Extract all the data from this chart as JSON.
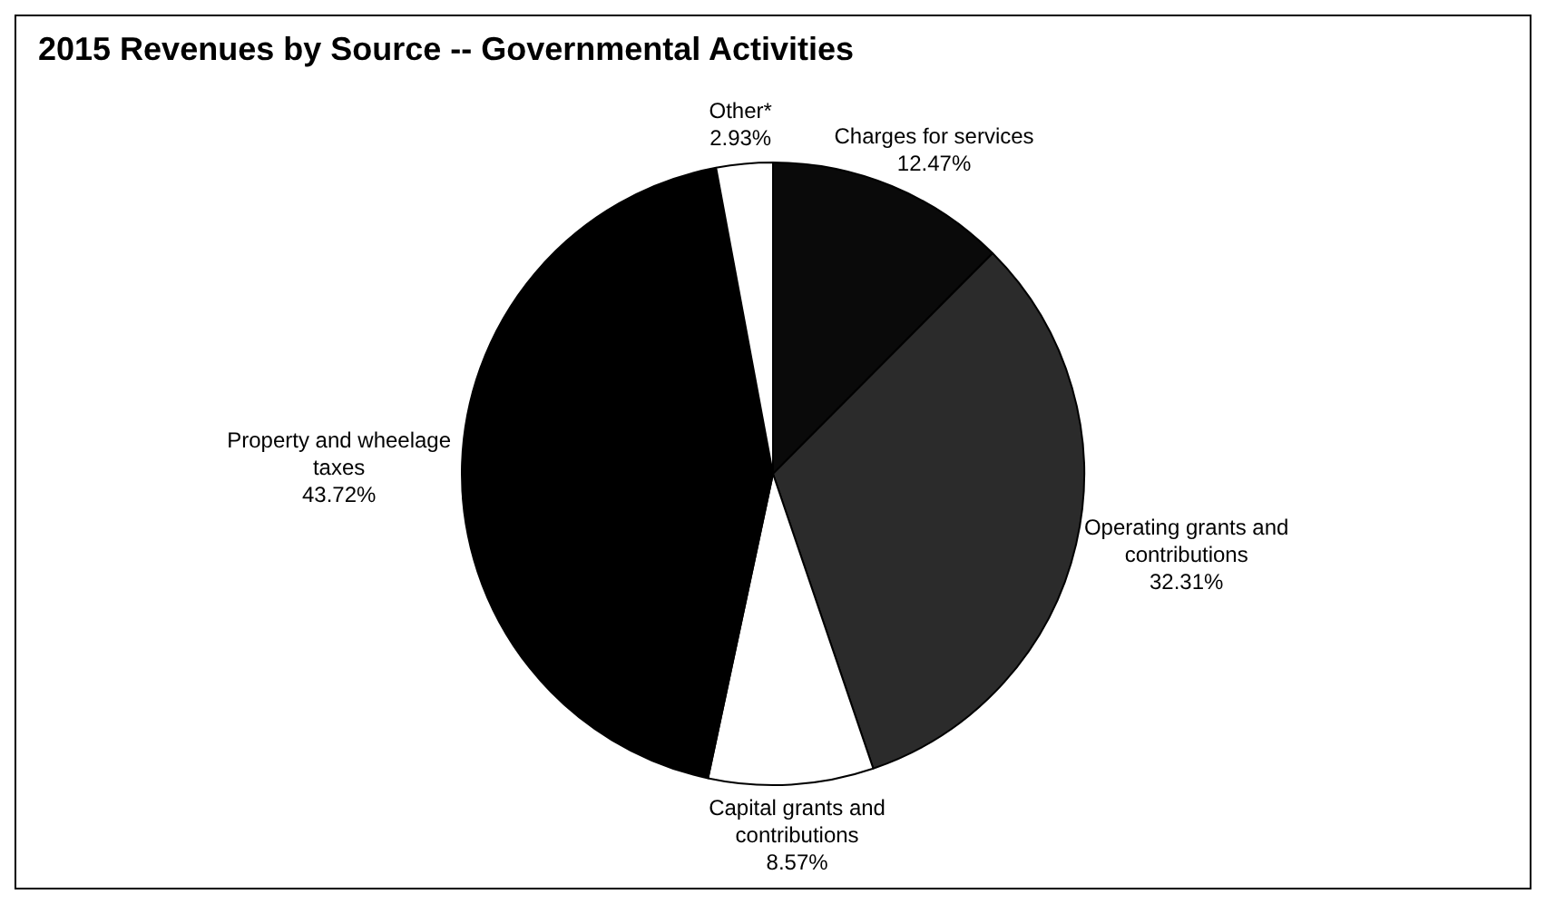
{
  "chart_data": {
    "type": "pie",
    "title": "2015 Revenues by Source -- Governmental Activities",
    "categories": [
      "Charges for services",
      "Operating grants and contributions",
      "Capital grants and contributions",
      "Property and wheelage taxes",
      "Other*"
    ],
    "values": [
      12.47,
      32.31,
      8.57,
      43.72,
      2.93
    ],
    "value_labels": [
      "12.47%",
      "32.31%",
      "8.57%",
      "43.72%",
      "2.93%"
    ],
    "colors": [
      "#0a0a0a",
      "#2b2b2b",
      "#ffffff",
      "#000000",
      "#ffffff"
    ],
    "legend": false
  }
}
